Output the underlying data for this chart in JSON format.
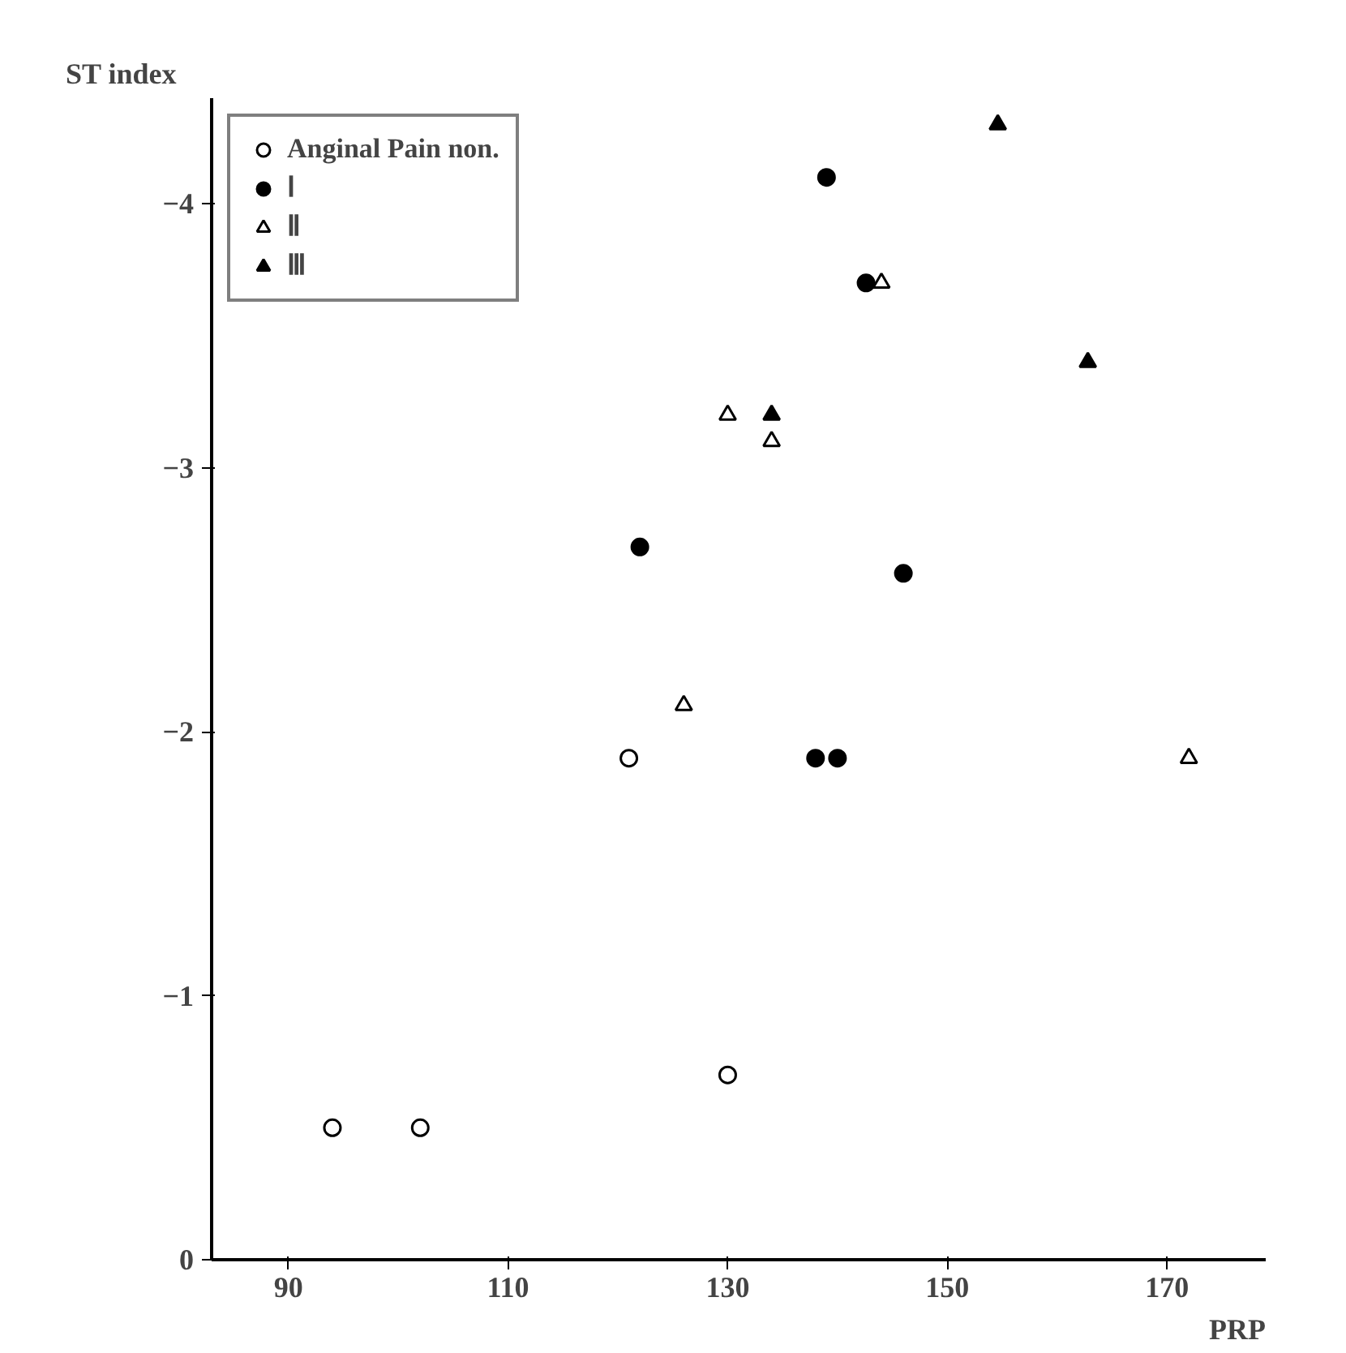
{
  "chart_data": {
    "type": "scatter",
    "xlabel": "PRP",
    "ylabel": "ST index",
    "xlim": [
      83,
      179
    ],
    "ylim": [
      0,
      -4.4
    ],
    "xticks": [
      90,
      110,
      130,
      150,
      170
    ],
    "yticks": [
      0,
      {
        "value": -1,
        "label": "−1"
      },
      {
        "value": -2,
        "label": "−2"
      },
      {
        "value": -3,
        "label": "−3"
      },
      {
        "value": -4,
        "label": "−4"
      }
    ],
    "grid": false,
    "legend": "top left",
    "series": [
      {
        "name": "Anginal Pain non.",
        "color": "#000000",
        "marker": "circle_open",
        "x": [
          94,
          102,
          121,
          130
        ],
        "values": [
          -0.5,
          -0.5,
          -1.9,
          -0.7
        ]
      },
      {
        "name": "Ⅰ",
        "color": "#000000",
        "marker": "circle",
        "x": [
          122,
          139,
          142.6,
          146,
          138,
          140
        ],
        "values": [
          -2.7,
          -4.1,
          -3.7,
          -2.6,
          -1.9,
          -1.9
        ]
      },
      {
        "name": "Ⅱ",
        "color": "#000000",
        "marker": "triangle_open",
        "x": [
          126,
          130,
          134,
          144,
          172
        ],
        "values": [
          -2.1,
          -3.2,
          -3.1,
          -3.7,
          -1.9
        ]
      },
      {
        "name": "Ⅲ",
        "color": "#000000",
        "marker": "triangle",
        "x": [
          134,
          154.6,
          162.8
        ],
        "values": [
          -3.2,
          -4.3,
          -3.4
        ]
      }
    ]
  }
}
